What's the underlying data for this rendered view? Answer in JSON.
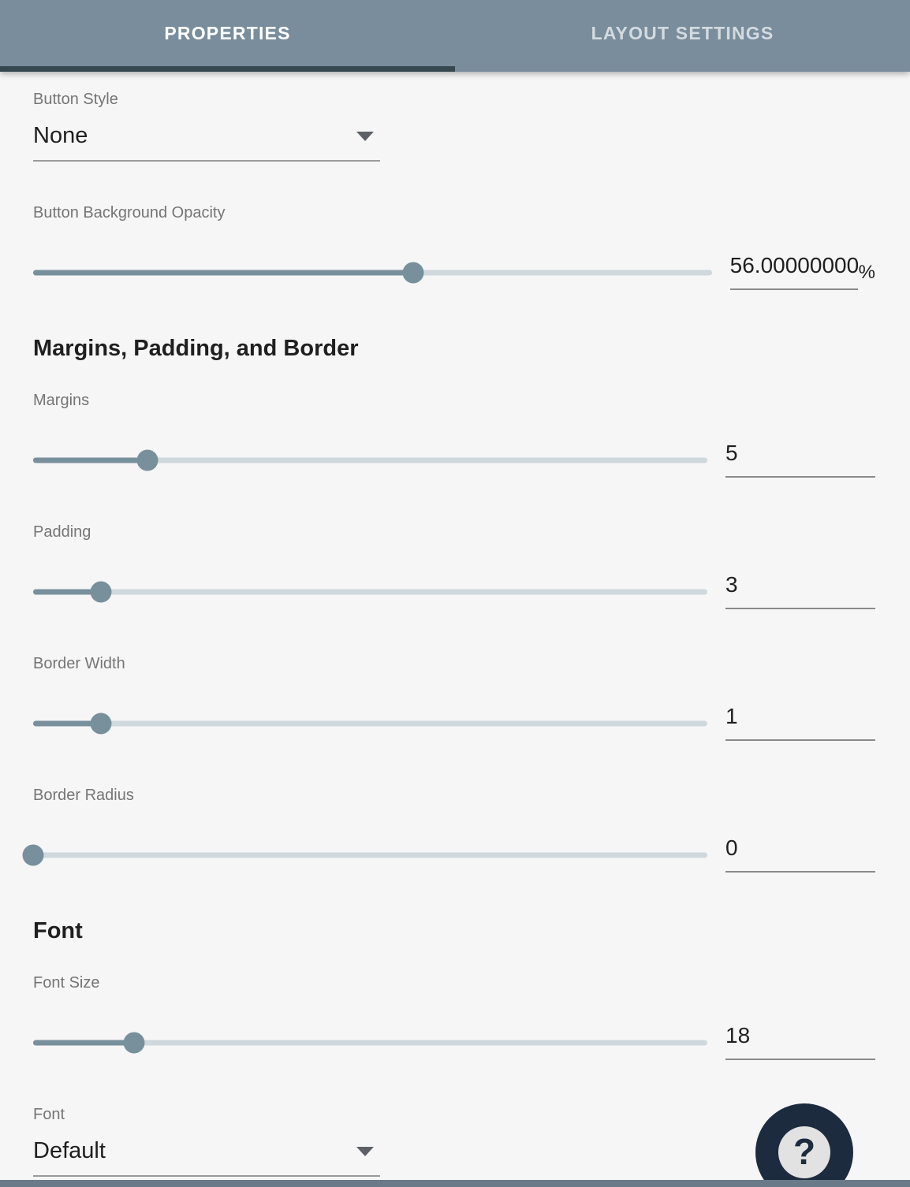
{
  "colors": {
    "tabbar_bg": "#798D9C",
    "tab_indicator": "#36474F",
    "slider_fill": "#78909C",
    "slider_track": "#CFD8DC",
    "fab_bg": "#1C2B3E",
    "bottom_strip": "#6B7A89"
  },
  "tabs": [
    {
      "label": "PROPERTIES",
      "active": true
    },
    {
      "label": "LAYOUT SETTINGS",
      "active": false
    }
  ],
  "button_style": {
    "label": "Button Style",
    "value": "None"
  },
  "opacity": {
    "label": "Button Background Opacity",
    "value": "56.00000000",
    "suffix": "%",
    "percent": 56
  },
  "sections": {
    "margins_padding_border": "Margins, Padding, and Border",
    "font": "Font"
  },
  "margins": {
    "label": "Margins",
    "value": "5",
    "percent": 17
  },
  "padding": {
    "label": "Padding",
    "value": "3",
    "percent": 10
  },
  "border_width": {
    "label": "Border Width",
    "value": "1",
    "percent": 10
  },
  "border_radius": {
    "label": "Border Radius",
    "value": "0",
    "percent": 0
  },
  "font_size": {
    "label": "Font Size",
    "value": "18",
    "percent": 15
  },
  "font": {
    "label": "Font",
    "value": "Default"
  },
  "help_button": {
    "glyph": "?"
  }
}
